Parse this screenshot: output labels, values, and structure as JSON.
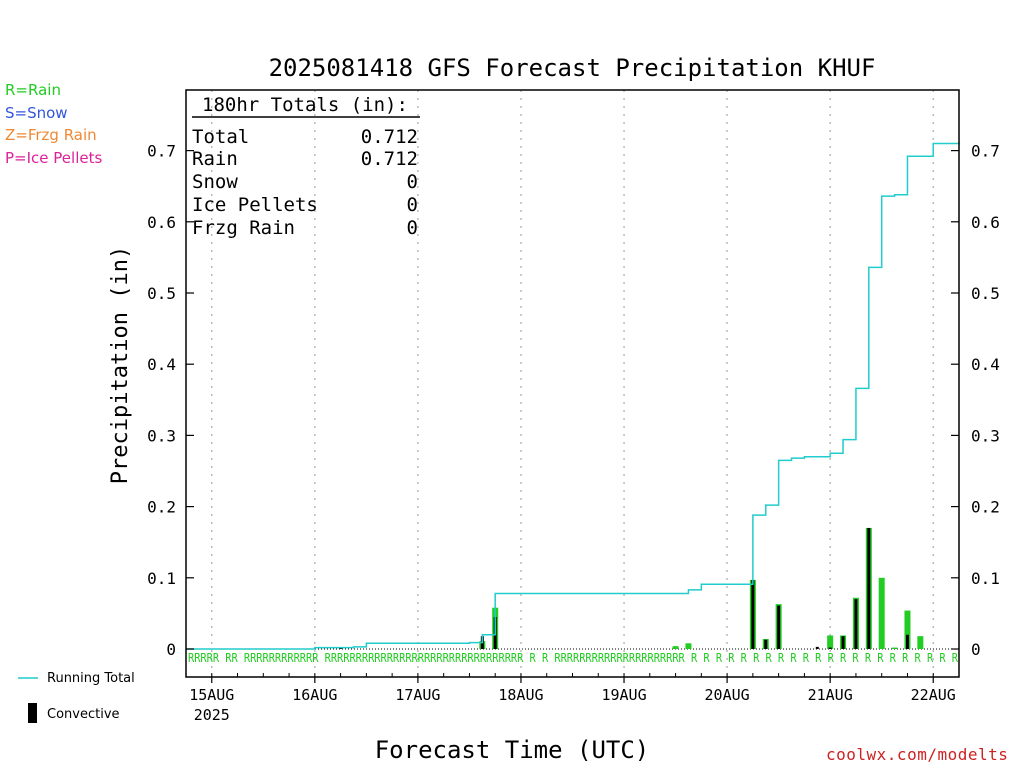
{
  "chart_data": {
    "type": "bar",
    "title": "2025081418 GFS Forecast Precipitation KHUF",
    "xlabel": "Forecast Time (UTC)",
    "ylabel": "Precipitation (in)",
    "ylim": [
      0,
      0.79
    ],
    "y_ticks": [
      "0",
      "0.1",
      "0.2",
      "0.3",
      "0.4",
      "0.5",
      "0.6",
      "0.7"
    ],
    "x_ticks": [
      "15AUG",
      "16AUG",
      "17AUG",
      "18AUG",
      "19AUG",
      "20AUG",
      "21AUG",
      "22AUG"
    ],
    "x_year": "2025",
    "xlim_days": [
      14.75,
      22.25
    ],
    "grid": "vertical dotted at day boundaries",
    "precip_legend": [
      {
        "label": "R=Rain",
        "color": "#22cc22"
      },
      {
        "label": "S=Snow",
        "color": "#3355dd"
      },
      {
        "label": "Z=Frzg Rain",
        "color": "#ee8833"
      },
      {
        "label": "P=Ice Pellets",
        "color": "#dd2299"
      }
    ],
    "totals_box": {
      "heading": "180hr Totals (in):",
      "rows": [
        {
          "label": "Total",
          "value": "0.712"
        },
        {
          "label": "Rain",
          "value": "0.712"
        },
        {
          "label": "Snow",
          "value": "0"
        },
        {
          "label": "Ice Pellets",
          "value": "0"
        },
        {
          "label": "Frzg Rain",
          "value": "0"
        }
      ]
    },
    "series": [
      {
        "name": "Running Total",
        "color": "#22cccc",
        "x": [
          "15AUG 00Z",
          "16AUG 00Z",
          "16AUG 09Z",
          "16AUG 12Z",
          "17AUG 00Z",
          "17AUG 12Z",
          "17AUG 15Z",
          "17AUG 18Z",
          "18AUG 00Z",
          "19AUG 00Z",
          "19AUG 12Z",
          "19AUG 15Z",
          "19AUG 18Z",
          "20AUG 00Z",
          "20AUG 06Z",
          "20AUG 09Z",
          "20AUG 12Z",
          "20AUG 15Z",
          "20AUG 18Z",
          "21AUG 00Z",
          "21AUG 03Z",
          "21AUG 06Z",
          "21AUG 09Z",
          "21AUG 12Z",
          "21AUG 15Z",
          "21AUG 18Z",
          "22AUG 00Z",
          "22AUG 06Z"
        ],
        "values": [
          0,
          0.002,
          0.003,
          0.008,
          0.008,
          0.009,
          0.02,
          0.078,
          0.078,
          0.078,
          0.078,
          0.083,
          0.091,
          0.091,
          0.188,
          0.202,
          0.265,
          0.268,
          0.27,
          0.275,
          0.294,
          0.366,
          0.536,
          0.636,
          0.638,
          0.692,
          0.71,
          0.712
        ]
      },
      {
        "name": "Convective",
        "color": "#000000",
        "x": [
          "16AUG 06Z",
          "17AUG 15Z",
          "17AUG 18Z",
          "20AUG 06Z",
          "20AUG 09Z",
          "20AUG 12Z",
          "20AUG 21Z",
          "21AUG 00Z",
          "21AUG 03Z",
          "21AUG 06Z",
          "21AUG 09Z",
          "21AUG 18Z"
        ],
        "values": [
          0.002,
          0.018,
          0.045,
          0.097,
          0.013,
          0.061,
          0.003,
          0.002,
          0.018,
          0.07,
          0.17,
          0.02
        ]
      },
      {
        "name": "",
        "color": "#22cc22",
        "x": [
          "17AUG 15Z",
          "17AUG 18Z",
          "19AUG 12Z",
          "19AUG 15Z",
          "20AUG 06Z",
          "20AUG 09Z",
          "20AUG 12Z",
          "21AUG 00Z",
          "21AUG 03Z",
          "21AUG 06Z",
          "21AUG 09Z",
          "21AUG 12Z",
          "21AUG 15Z",
          "21AUG 18Z",
          "21AUG 21Z"
        ],
        "values": [
          0.011,
          0.058,
          0.004,
          0.008,
          0.097,
          0.014,
          0.063,
          0.019,
          0.019,
          0.072,
          0.17,
          0.1,
          0.002,
          0.054,
          0.018
        ]
      }
    ],
    "ptype_strip": "RRRRR RR RRRRRRRRRRRR RRRRRRRRRRRRRRRRRRRRRRRRRRRRRRRR R R RRRRRRRRRRRRRRRRRRRRR R R R R R R R R R R R R R R R R R R R R R R"
  },
  "credit": "coolwx.com/modelts"
}
